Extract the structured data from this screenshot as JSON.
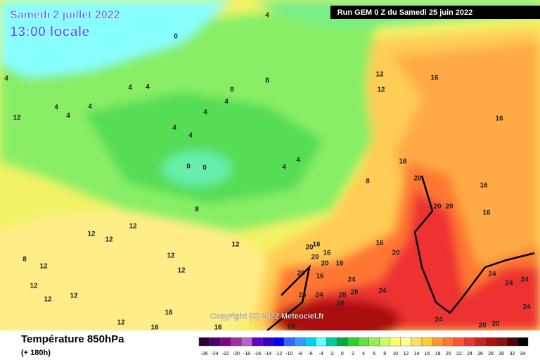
{
  "header": {
    "date": "Samedi 2 juillet 2022",
    "time": "13:00 locale",
    "run": "Run GEM 0 Z du Samedi 25 juin 2022"
  },
  "map": {
    "copyright": "Copyright (C) 2022 Meteociel.fr",
    "contour_labels": [
      4,
      0,
      4,
      4,
      4,
      8,
      8,
      4,
      4,
      4,
      4,
      4,
      4,
      4,
      0,
      0,
      4,
      4,
      12,
      12,
      12,
      16,
      16,
      16,
      20,
      8,
      20,
      20,
      16,
      16,
      8,
      12,
      12,
      12,
      12,
      12,
      12,
      12,
      8,
      12,
      12,
      12,
      16,
      12,
      16,
      16,
      20,
      16,
      16,
      16,
      20,
      20,
      20,
      16,
      24,
      16,
      20,
      24,
      28,
      28,
      28,
      24,
      24,
      28,
      24,
      24,
      24,
      24,
      24,
      20,
      20
    ]
  },
  "footer": {
    "title": "Température 850hPa",
    "lead": "(+ 180h)"
  },
  "legend": {
    "ticks": [
      -26,
      -24,
      -22,
      -20,
      -18,
      -16,
      -14,
      -12,
      -10,
      -8,
      -6,
      -4,
      -2,
      0,
      2,
      4,
      6,
      8,
      10,
      12,
      14,
      16,
      18,
      20,
      22,
      24,
      26,
      28,
      30,
      32,
      34
    ],
    "colors": [
      "#2a0033",
      "#4d0066",
      "#800080",
      "#993399",
      "#b366cc",
      "#6600cc",
      "#3300cc",
      "#0000ff",
      "#3366ff",
      "#3399ff",
      "#00ccff",
      "#66ffff",
      "#00cc99",
      "#00aa44",
      "#33cc33",
      "#66dd44",
      "#99ee55",
      "#ccff66",
      "#ffff66",
      "#ffff99",
      "#ffdd66",
      "#ffcc33",
      "#ff9933",
      "#ff7733",
      "#ff5533",
      "#ee3333",
      "#cc2222",
      "#aa1111",
      "#881111",
      "#550000",
      "#000000"
    ]
  }
}
